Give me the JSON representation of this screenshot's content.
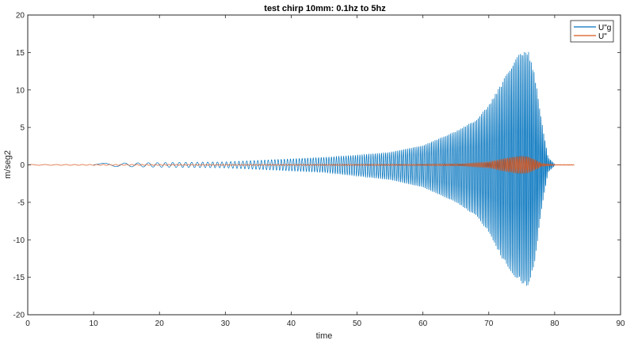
{
  "chart_data": {
    "type": "line",
    "title": "test chirp 10mm: 0.1hz to 5hz",
    "xlabel": "time",
    "ylabel": "m/seg2",
    "xlim": [
      0,
      90
    ],
    "ylim": [
      -20,
      20
    ],
    "xticks": [
      0,
      10,
      20,
      30,
      40,
      50,
      60,
      70,
      80,
      90
    ],
    "yticks": [
      20,
      15,
      10,
      5,
      0,
      -5,
      -10,
      -15,
      -20
    ],
    "x_tick_labels": [
      "0",
      "10",
      "20",
      "30",
      "40",
      "50",
      "60",
      "70",
      "80",
      "90"
    ],
    "y_tick_labels": [
      "20",
      "15",
      "10",
      "5",
      "0",
      "-5",
      "-10",
      "-15",
      "-20"
    ],
    "grid": false,
    "legend_position": "top-right",
    "series": [
      {
        "name": "U\"g",
        "color": "#0072BD",
        "style": "chirp",
        "freq_start_hz": 0.1,
        "freq_end_hz": 5,
        "x_start": 10,
        "x_end": 80,
        "envelope": {
          "x": [
            10,
            20,
            30,
            40,
            45,
            50,
            55,
            60,
            65,
            68,
            70,
            72,
            74,
            75,
            76,
            77,
            78,
            79,
            80
          ],
          "upper": [
            0.2,
            0.3,
            0.4,
            0.8,
            1.0,
            1.3,
            1.7,
            2.6,
            4.5,
            6.0,
            8.0,
            11.0,
            14.3,
            15.0,
            15.2,
            12.0,
            6.0,
            1.0,
            0.1
          ],
          "lower": [
            -0.2,
            -0.3,
            -0.4,
            -0.8,
            -1.0,
            -1.5,
            -2.0,
            -3.0,
            -5.0,
            -6.8,
            -9.0,
            -12.5,
            -15.0,
            -15.8,
            -16.3,
            -13.0,
            -6.0,
            -1.0,
            -0.1
          ]
        }
      },
      {
        "name": "U\"",
        "color": "#D95319",
        "style": "chirp",
        "x_start": 0,
        "x_end": 83,
        "envelope": {
          "x": [
            0,
            40,
            60,
            66,
            70,
            72,
            74,
            75,
            76,
            77,
            78,
            80,
            83
          ],
          "upper": [
            0.05,
            0.08,
            0.1,
            0.15,
            0.4,
            0.8,
            1.1,
            1.2,
            1.1,
            0.7,
            0.2,
            0.05,
            0.05
          ],
          "lower": [
            -0.05,
            -0.08,
            -0.1,
            -0.15,
            -0.4,
            -0.8,
            -1.1,
            -1.2,
            -1.1,
            -0.7,
            -0.2,
            -0.05,
            -0.05
          ]
        }
      }
    ]
  }
}
